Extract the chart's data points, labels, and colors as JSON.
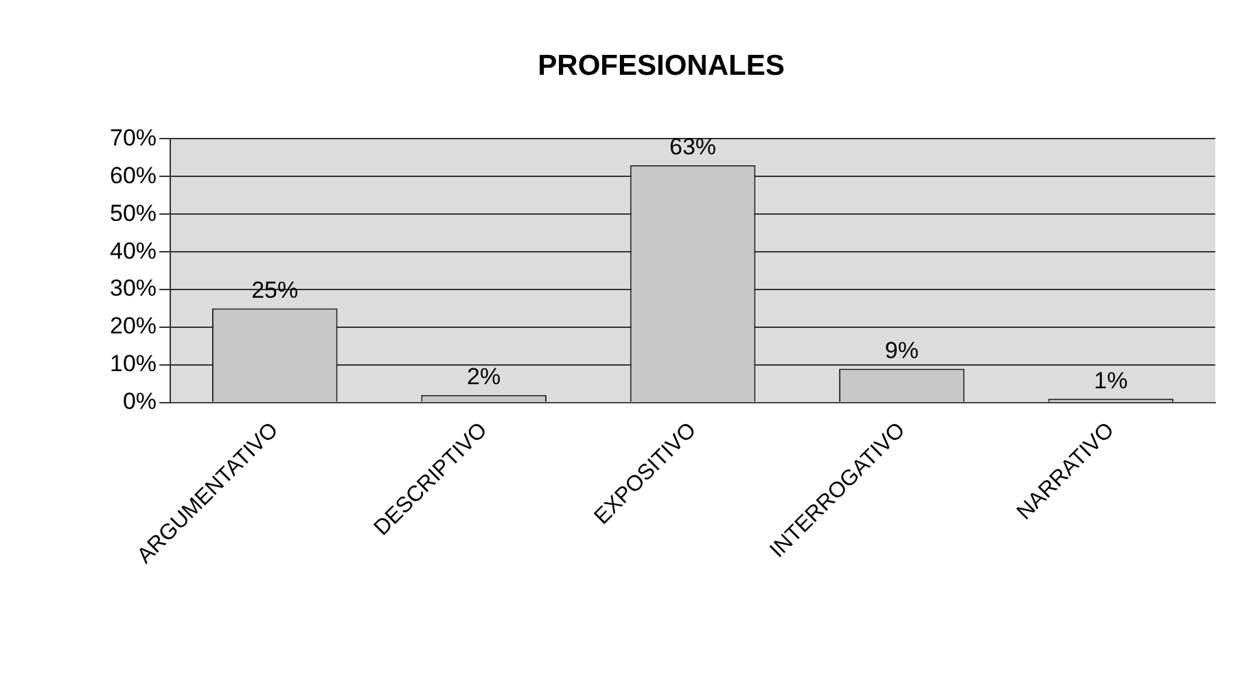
{
  "chart_data": {
    "type": "bar",
    "title": "PROFESIONALES",
    "categories": [
      "ARGUMENTATIVO",
      "DESCRIPTIVO",
      "EXPOSITIVO",
      "INTERROGATIVO",
      "NARRATIVO"
    ],
    "values": [
      25,
      2,
      63,
      9,
      1
    ],
    "value_labels": [
      "25%",
      "2%",
      "63%",
      "9%",
      "1%"
    ],
    "color": "#c8c8c8",
    "ylim": [
      0,
      70
    ],
    "yticks": [
      {
        "value": 0,
        "label": "0%"
      },
      {
        "value": 10,
        "label": "10%"
      },
      {
        "value": 20,
        "label": "20%"
      },
      {
        "value": 30,
        "label": "30%"
      },
      {
        "value": 40,
        "label": "40%"
      },
      {
        "value": 50,
        "label": "50%"
      },
      {
        "value": 60,
        "label": "60%"
      },
      {
        "value": 70,
        "label": "70%"
      }
    ],
    "grid": "y",
    "legend": false
  }
}
